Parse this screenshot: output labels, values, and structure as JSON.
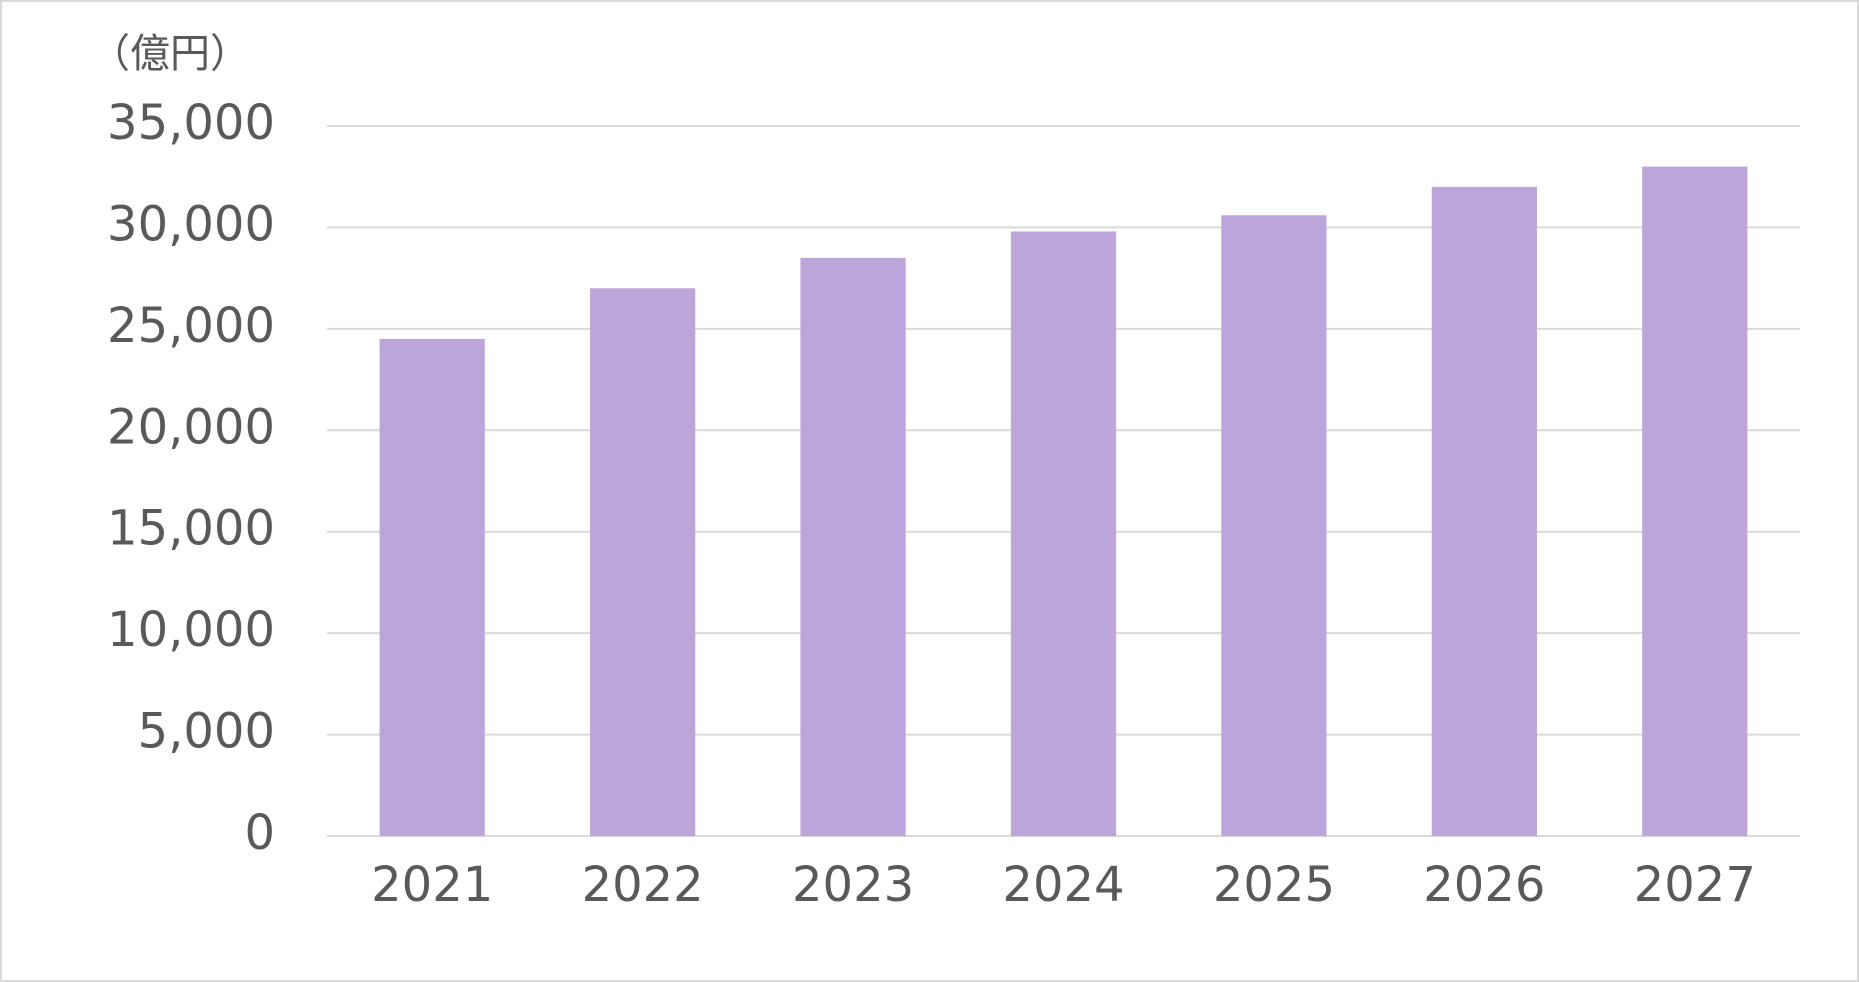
{
  "chart_data": {
    "type": "bar",
    "y_label": "（億円）",
    "categories": [
      "2021",
      "2022",
      "2023",
      "2024",
      "2025",
      "2026",
      "2027"
    ],
    "values": [
      24500,
      27000,
      28500,
      29800,
      30600,
      32000,
      33000
    ],
    "color": "#bca5d9",
    "ylim": [
      0,
      35000
    ],
    "yticks": [
      0,
      {
        "value": 5000,
        "label": "5,000"
      },
      {
        "value": 10000,
        "label": "10,000"
      },
      {
        "value": 15000,
        "label": "15,000"
      },
      {
        "value": 20000,
        "label": "20,000"
      },
      {
        "value": 25000,
        "label": "25,000"
      },
      {
        "value": 30000,
        "label": "30,000"
      },
      {
        "value": 35000,
        "label": "35,000"
      }
    ],
    "grid": true
  }
}
